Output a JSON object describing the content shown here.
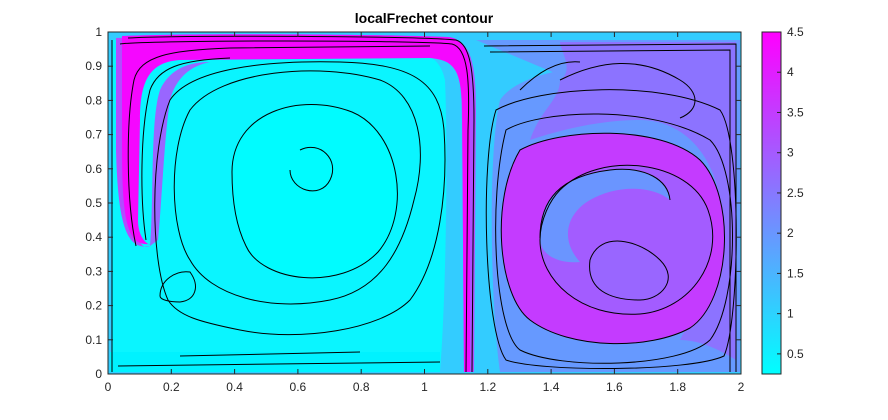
{
  "chart_data": {
    "type": "contour",
    "title": "localFrechet contour",
    "xlabel": "",
    "ylabel": "",
    "xlim": [
      0,
      2
    ],
    "ylim": [
      0,
      1
    ],
    "x_ticks": [
      0,
      0.2,
      0.4,
      0.6,
      0.8,
      1,
      1.2,
      1.4,
      1.6,
      1.8,
      2
    ],
    "x_tick_labels": [
      "0",
      "0.2",
      "0.4",
      "0.6",
      "0.8",
      "1",
      "1.2",
      "1.4",
      "1.6",
      "1.8",
      "2"
    ],
    "y_ticks": [
      0,
      0.1,
      0.2,
      0.3,
      0.4,
      0.5,
      0.6,
      0.7,
      0.8,
      0.9,
      1
    ],
    "y_tick_labels": [
      "0",
      "0.1",
      "0.2",
      "0.3",
      "0.4",
      "0.5",
      "0.6",
      "0.7",
      "0.8",
      "0.9",
      "1"
    ],
    "colorbar": {
      "range": [
        0.25,
        4.5
      ],
      "ticks": [
        0.5,
        1,
        1.5,
        2,
        2.5,
        3,
        3.5,
        4,
        4.5
      ],
      "tick_labels": [
        "0.5",
        "1",
        "1.5",
        "2",
        "2.5",
        "3",
        "3.5",
        "4",
        "4.5"
      ],
      "colormap": "cool",
      "color_low": "#00ffff",
      "color_high": "#ff00ff"
    },
    "grid": false,
    "legend": "none"
  }
}
